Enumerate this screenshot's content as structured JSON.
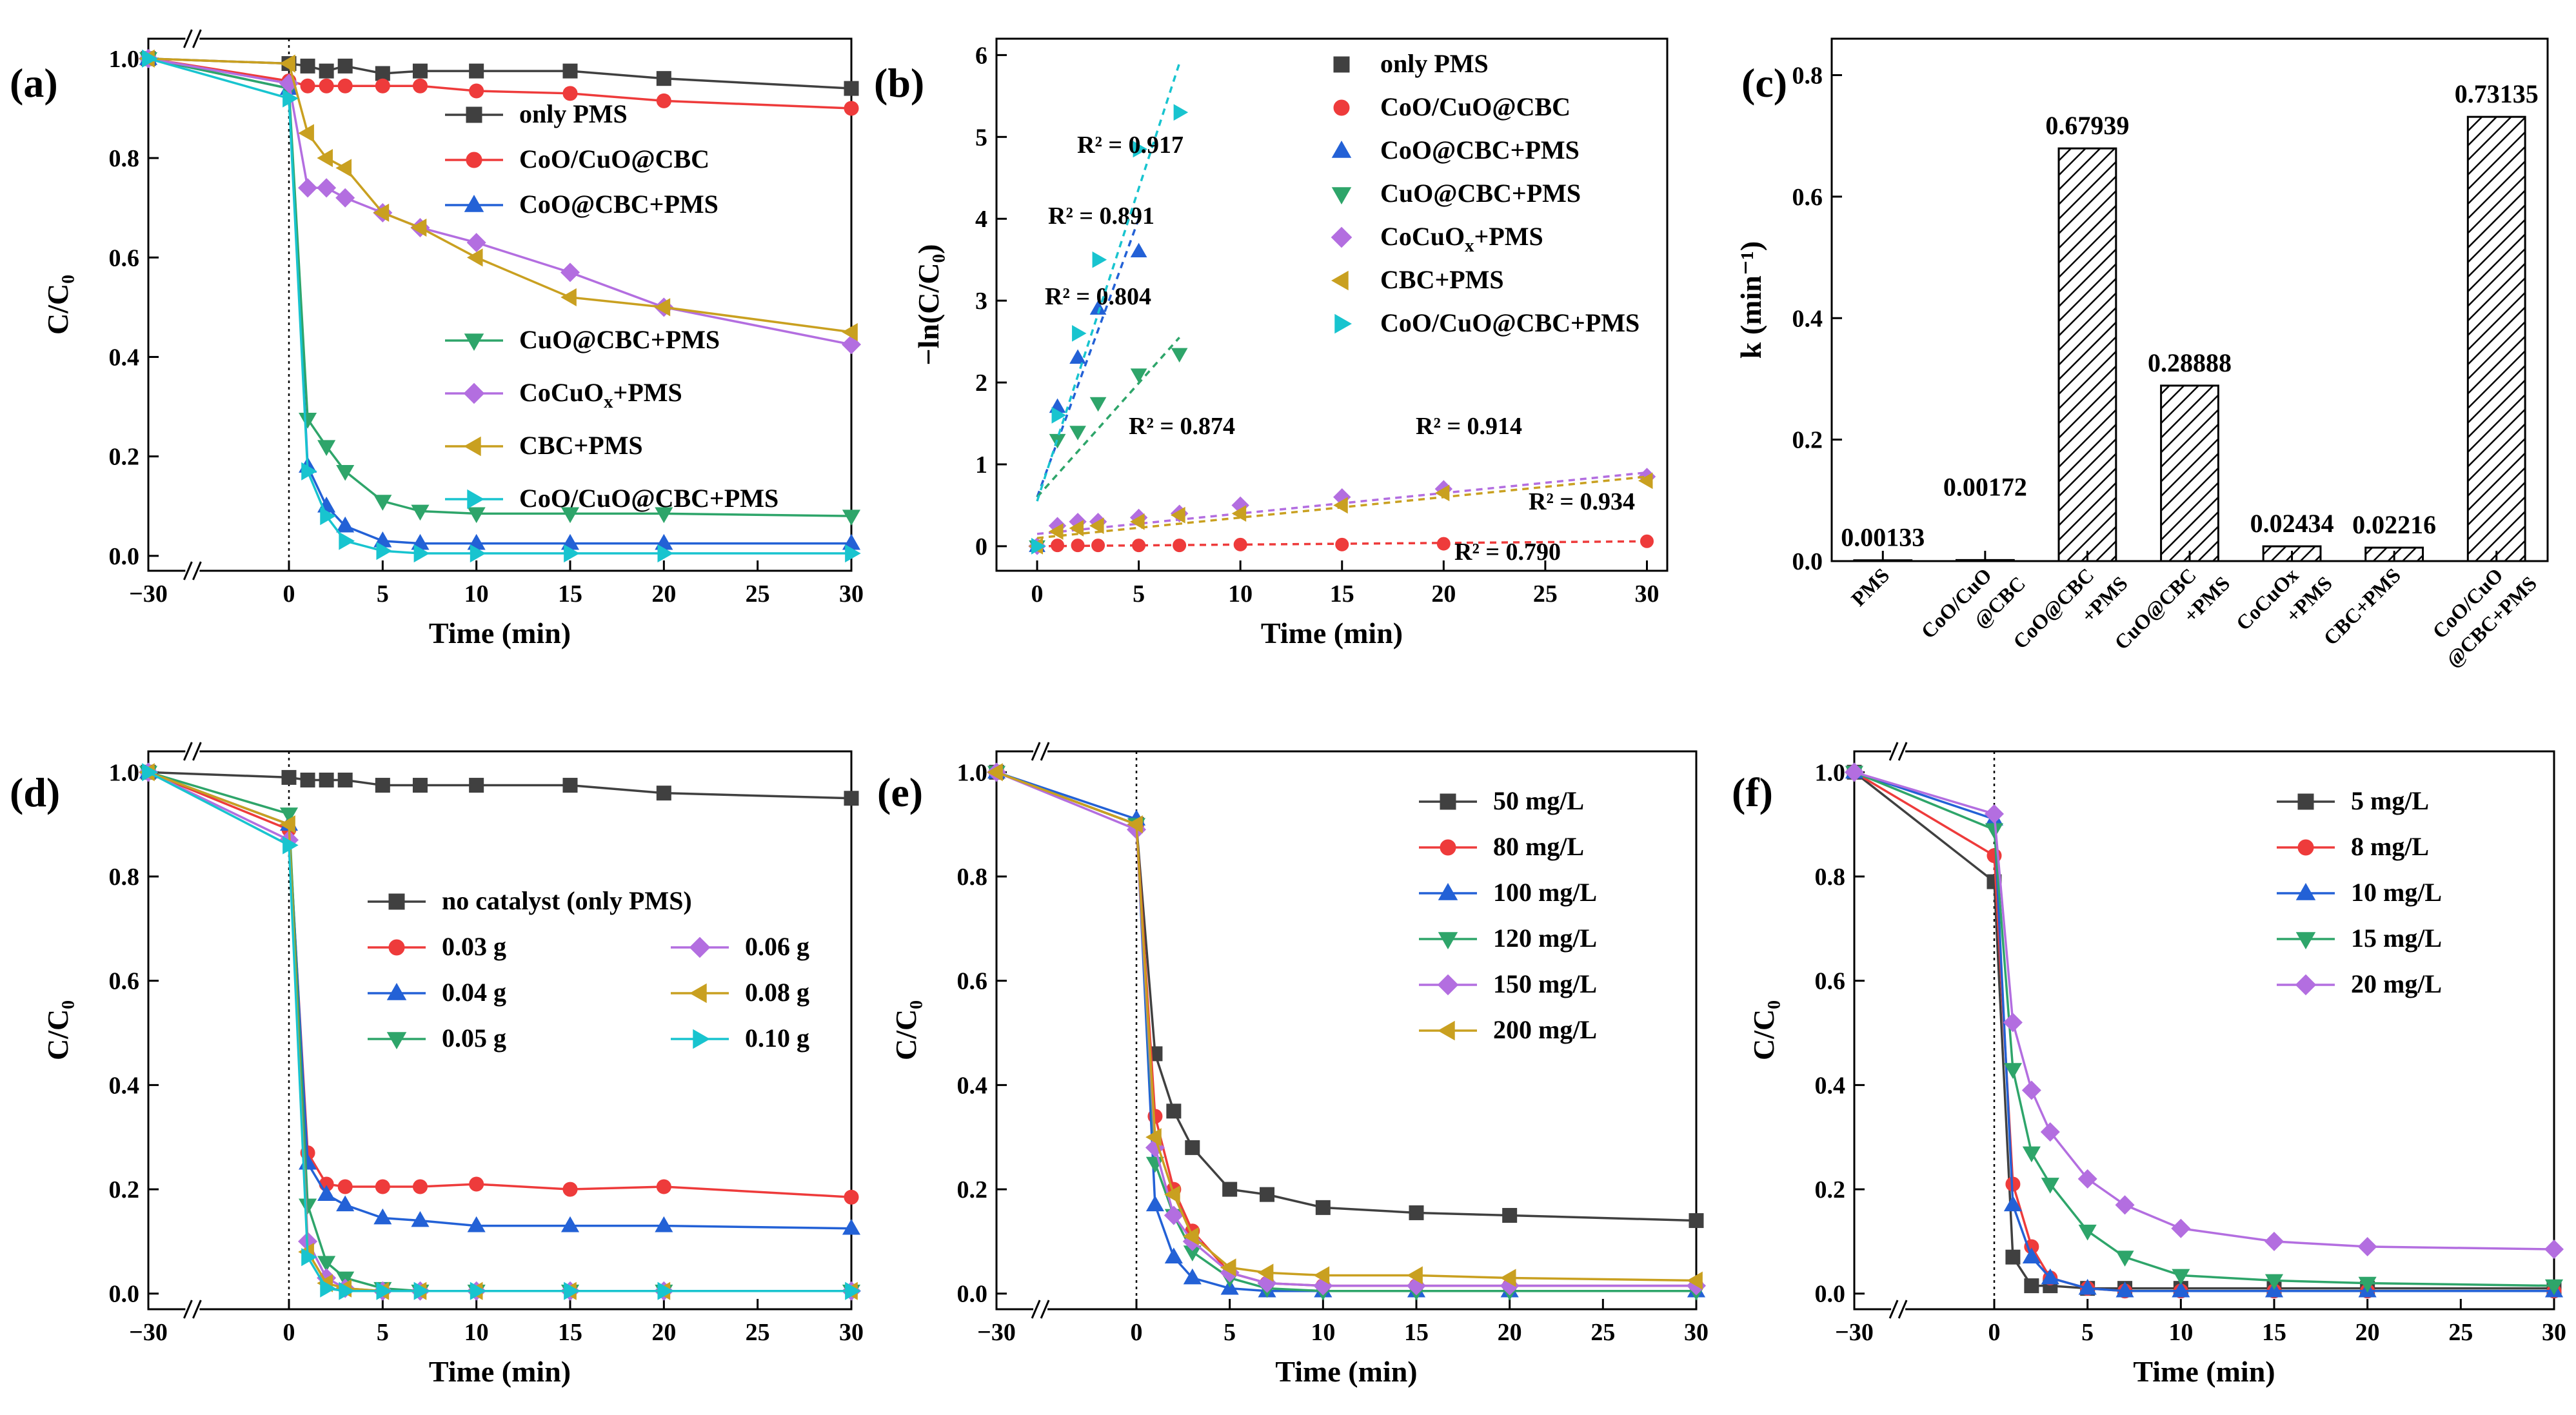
{
  "chart_data": [
    {
      "id": "a",
      "panel_label": "(a)",
      "type": "line",
      "xlabel": "Time (min)",
      "ylabel": "C/C₀",
      "x_ticks": [
        -30,
        0,
        5,
        10,
        15,
        20,
        25,
        30
      ],
      "y_ticks": [
        0.0,
        0.2,
        0.4,
        0.6,
        0.8,
        1.0
      ],
      "ylim": [
        -0.03,
        1.04
      ],
      "x": [
        -30,
        0,
        1,
        2,
        3,
        5,
        7,
        10,
        15,
        20,
        30
      ],
      "series": [
        {
          "name": "only PMS",
          "color": "#404040",
          "marker": "square",
          "values": [
            1.0,
            0.99,
            0.985,
            0.975,
            0.985,
            0.97,
            0.975,
            0.975,
            0.975,
            0.96,
            0.94
          ]
        },
        {
          "name": "CoO/CuO@CBC",
          "color": "#ee3b3b",
          "marker": "circle",
          "values": [
            1.0,
            0.955,
            0.945,
            0.945,
            0.945,
            0.945,
            0.945,
            0.935,
            0.93,
            0.915,
            0.9
          ]
        },
        {
          "name": "CoO@CBC+PMS",
          "color": "#2361d6",
          "marker": "triangle-up",
          "values": [
            1.0,
            0.94,
            0.18,
            0.1,
            0.06,
            0.03,
            0.025,
            0.025,
            0.025,
            0.025,
            0.025
          ]
        },
        {
          "name": "CuO@CBC+PMS",
          "color": "#2ea56a",
          "marker": "triangle-down",
          "values": [
            1.0,
            0.94,
            0.275,
            0.22,
            0.17,
            0.11,
            0.09,
            0.085,
            0.085,
            0.085,
            0.08
          ]
        },
        {
          "name": "CoCuOx+PMS",
          "legend": [
            "CoCuO",
            "x",
            "+PMS"
          ],
          "color": "#b36ee0",
          "marker": "diamond",
          "values": [
            1.0,
            0.95,
            0.74,
            0.74,
            0.72,
            0.69,
            0.66,
            0.63,
            0.57,
            0.5,
            0.425
          ]
        },
        {
          "name": "CBC+PMS",
          "color": "#c9a020",
          "marker": "triangle-left",
          "values": [
            1.0,
            0.99,
            0.85,
            0.8,
            0.78,
            0.69,
            0.66,
            0.6,
            0.52,
            0.5,
            0.45
          ]
        },
        {
          "name": "CoO/CuO@CBC+PMS",
          "color": "#18c4cf",
          "marker": "triangle-right",
          "values": [
            1.0,
            0.92,
            0.17,
            0.08,
            0.03,
            0.01,
            0.005,
            0.005,
            0.005,
            0.005,
            0.005
          ]
        }
      ]
    },
    {
      "id": "b",
      "panel_label": "(b)",
      "type": "scatter",
      "xlabel": "Time (min)",
      "ylabel": "−ln(C/C₀)",
      "x_ticks": [
        0,
        5,
        10,
        15,
        20,
        25,
        30
      ],
      "xlim": [
        -2,
        31
      ],
      "y_ticks": [
        0,
        1,
        2,
        3,
        4,
        5,
        6
      ],
      "ylim": [
        -0.3,
        6.2
      ],
      "series": [
        {
          "name": "only PMS",
          "color": "#404040",
          "marker": "square",
          "points": []
        },
        {
          "name": "CoO/CuO@CBC",
          "color": "#ee3b3b",
          "marker": "circle",
          "points": [
            [
              0,
              0
            ],
            [
              1,
              0.01
            ],
            [
              2,
              0.01
            ],
            [
              3,
              0.01
            ],
            [
              5,
              0.01
            ],
            [
              7,
              0.01
            ],
            [
              10,
              0.02
            ],
            [
              15,
              0.02
            ],
            [
              20,
              0.03
            ],
            [
              30,
              0.06
            ]
          ],
          "fit": [
            [
              0,
              0.0
            ],
            [
              30,
              0.06
            ]
          ],
          "r2": "R² = 0.790"
        },
        {
          "name": "CoO@CBC+PMS",
          "color": "#2361d6",
          "marker": "triangle-up",
          "points": [
            [
              0,
              0
            ],
            [
              1,
              1.7
            ],
            [
              2,
              2.3
            ],
            [
              3,
              2.9
            ],
            [
              5,
              3.6
            ]
          ],
          "fit": [
            [
              0,
              0.6
            ],
            [
              5,
              4.0
            ]
          ],
          "r2": "R² = 0.891"
        },
        {
          "name": "CuO@CBC+PMS",
          "color": "#2ea56a",
          "marker": "triangle-down",
          "points": [
            [
              0,
              0
            ],
            [
              1,
              1.3
            ],
            [
              2,
              1.4
            ],
            [
              3,
              1.75
            ],
            [
              5,
              2.1
            ],
            [
              7,
              2.35
            ]
          ],
          "fit": [
            [
              0,
              0.6
            ],
            [
              7,
              2.55
            ]
          ],
          "r2": "R² = 0.804"
        },
        {
          "name": "CoCuOx+PMS",
          "legend": [
            "CoCuO",
            "x",
            "+PMS"
          ],
          "color": "#b36ee0",
          "marker": "diamond",
          "points": [
            [
              0,
              0
            ],
            [
              1,
              0.25
            ],
            [
              2,
              0.3
            ],
            [
              3,
              0.3
            ],
            [
              5,
              0.35
            ],
            [
              7,
              0.4
            ],
            [
              10,
              0.5
            ],
            [
              15,
              0.6
            ],
            [
              20,
              0.7
            ],
            [
              30,
              0.85
            ]
          ],
          "fit": [
            [
              0,
              0.15
            ],
            [
              30,
              0.9
            ]
          ],
          "r2": "R² = 0.874"
        },
        {
          "name": "CBC+PMS",
          "color": "#c9a020",
          "marker": "triangle-left",
          "points": [
            [
              0,
              0
            ],
            [
              1,
              0.18
            ],
            [
              2,
              0.22
            ],
            [
              3,
              0.25
            ],
            [
              5,
              0.3
            ],
            [
              7,
              0.38
            ],
            [
              10,
              0.4
            ],
            [
              15,
              0.5
            ],
            [
              20,
              0.65
            ],
            [
              30,
              0.8
            ]
          ],
          "fit": [
            [
              0,
              0.1
            ],
            [
              30,
              0.85
            ]
          ],
          "r2": "R² = 0.914"
        },
        {
          "name": "CoO/CuO@CBC+PMS",
          "color": "#18c4cf",
          "marker": "triangle-right",
          "points": [
            [
              0,
              0
            ],
            [
              1,
              1.6
            ],
            [
              2,
              2.6
            ],
            [
              3,
              3.5
            ],
            [
              5,
              4.85
            ],
            [
              7,
              5.3
            ]
          ],
          "fit": [
            [
              0,
              0.55
            ],
            [
              7,
              5.9
            ]
          ],
          "r2": "R² = 0.917"
        }
      ],
      "r2_extra": "R² = 0.934"
    },
    {
      "id": "c",
      "panel_label": "(c)",
      "type": "bar",
      "ylabel": "k (min⁻¹)",
      "y_ticks": [
        0.0,
        0.2,
        0.4,
        0.6,
        0.8
      ],
      "ylim": [
        0,
        0.86
      ],
      "categories": [
        {
          "lines": [
            "PMS"
          ]
        },
        {
          "lines": [
            "CoO/CuO",
            "@CBC"
          ]
        },
        {
          "lines": [
            "CoO@CBC",
            "+PMS"
          ]
        },
        {
          "lines": [
            "CuO@CBC",
            "+PMS"
          ]
        },
        {
          "lines": [
            "CoCuOx",
            "+PMS"
          ]
        },
        {
          "lines": [
            "CBC+PMS"
          ]
        },
        {
          "lines": [
            "CoO/CuO",
            "@CBC+PMS"
          ]
        }
      ],
      "values": [
        0.00133,
        0.00172,
        0.67939,
        0.28888,
        0.02434,
        0.02216,
        0.73135
      ],
      "value_labels": [
        "0.00133",
        "0.00172",
        "0.67939",
        "0.28888",
        "0.02434",
        "0.02216",
        "0.73135"
      ]
    },
    {
      "id": "d",
      "panel_label": "(d)",
      "type": "line",
      "xlabel": "Time (min)",
      "ylabel": "C/C₀",
      "x_ticks": [
        -30,
        0,
        5,
        10,
        15,
        20,
        25,
        30
      ],
      "y_ticks": [
        0.0,
        0.2,
        0.4,
        0.6,
        0.8,
        1.0
      ],
      "ylim": [
        -0.03,
        1.04
      ],
      "x": [
        -30,
        0,
        1,
        2,
        3,
        5,
        7,
        10,
        15,
        20,
        30
      ],
      "series": [
        {
          "name": "no catalyst (only PMS)",
          "color": "#404040",
          "marker": "square",
          "values": [
            1.0,
            0.99,
            0.985,
            0.985,
            0.985,
            0.975,
            0.975,
            0.975,
            0.975,
            0.96,
            0.95
          ]
        },
        {
          "name": "0.03 g",
          "color": "#ee3b3b",
          "marker": "circle",
          "values": [
            1.0,
            0.89,
            0.27,
            0.21,
            0.205,
            0.205,
            0.205,
            0.21,
            0.2,
            0.205,
            0.185
          ]
        },
        {
          "name": "0.04 g",
          "color": "#2361d6",
          "marker": "triangle-up",
          "values": [
            1.0,
            0.9,
            0.25,
            0.19,
            0.17,
            0.145,
            0.14,
            0.13,
            0.13,
            0.13,
            0.125
          ]
        },
        {
          "name": "0.05 g",
          "color": "#2ea56a",
          "marker": "triangle-down",
          "values": [
            1.0,
            0.92,
            0.17,
            0.06,
            0.03,
            0.01,
            0.005,
            0.005,
            0.005,
            0.005,
            0.005
          ]
        },
        {
          "name": "0.06 g",
          "color": "#b36ee0",
          "marker": "diamond",
          "values": [
            1.0,
            0.87,
            0.1,
            0.03,
            0.01,
            0.005,
            0.005,
            0.005,
            0.005,
            0.005,
            0.005
          ]
        },
        {
          "name": "0.08 g",
          "color": "#c9a020",
          "marker": "triangle-left",
          "values": [
            1.0,
            0.9,
            0.08,
            0.02,
            0.01,
            0.005,
            0.005,
            0.005,
            0.005,
            0.005,
            0.005
          ]
        },
        {
          "name": "0.10 g",
          "color": "#18c4cf",
          "marker": "triangle-right",
          "values": [
            1.0,
            0.86,
            0.07,
            0.01,
            0.005,
            0.005,
            0.005,
            0.005,
            0.005,
            0.005,
            0.005
          ]
        }
      ]
    },
    {
      "id": "e",
      "panel_label": "(e)",
      "type": "line",
      "xlabel": "Time (min)",
      "ylabel": "C/C₀",
      "x_ticks": [
        -30,
        0,
        5,
        10,
        15,
        20,
        25,
        30
      ],
      "y_ticks": [
        0.0,
        0.2,
        0.4,
        0.6,
        0.8,
        1.0
      ],
      "ylim": [
        -0.03,
        1.04
      ],
      "x": [
        -30,
        0,
        1,
        2,
        3,
        5,
        7,
        10,
        15,
        20,
        30
      ],
      "series": [
        {
          "name": "50 mg/L",
          "color": "#404040",
          "marker": "square",
          "values": [
            1.0,
            0.9,
            0.46,
            0.35,
            0.28,
            0.2,
            0.19,
            0.165,
            0.155,
            0.15,
            0.14
          ]
        },
        {
          "name": " 80 mg/L",
          "color": "#ee3b3b",
          "marker": "circle",
          "values": [
            1.0,
            0.9,
            0.34,
            0.2,
            0.12,
            0.04,
            0.02,
            0.015,
            0.015,
            0.015,
            0.015
          ]
        },
        {
          "name": "100 mg/L",
          "color": "#2361d6",
          "marker": "triangle-up",
          "values": [
            1.0,
            0.91,
            0.17,
            0.07,
            0.03,
            0.01,
            0.005,
            0.005,
            0.005,
            0.005,
            0.005
          ]
        },
        {
          "name": "120 mg/L",
          "color": "#2ea56a",
          "marker": "triangle-down",
          "values": [
            1.0,
            0.9,
            0.25,
            0.15,
            0.08,
            0.03,
            0.01,
            0.005,
            0.005,
            0.005,
            0.005
          ]
        },
        {
          "name": "150 mg/L",
          "color": "#b36ee0",
          "marker": "diamond",
          "values": [
            1.0,
            0.89,
            0.28,
            0.15,
            0.1,
            0.04,
            0.02,
            0.015,
            0.015,
            0.015,
            0.015
          ]
        },
        {
          "name": "200 mg/L",
          "color": "#c9a020",
          "marker": "triangle-left",
          "values": [
            1.0,
            0.9,
            0.3,
            0.19,
            0.11,
            0.05,
            0.04,
            0.035,
            0.035,
            0.03,
            0.025
          ]
        }
      ]
    },
    {
      "id": "f",
      "panel_label": "(f)",
      "type": "line",
      "xlabel": "Time (min)",
      "ylabel": "C/C₀",
      "x_ticks": [
        -30,
        0,
        5,
        10,
        15,
        20,
        25,
        30
      ],
      "y_ticks": [
        0.0,
        0.2,
        0.4,
        0.6,
        0.8,
        1.0
      ],
      "ylim": [
        -0.03,
        1.04
      ],
      "x": [
        -30,
        0,
        1,
        2,
        3,
        5,
        7,
        10,
        15,
        20,
        30
      ],
      "series": [
        {
          "name": "5 mg/L",
          "color": "#404040",
          "marker": "square",
          "values": [
            1.0,
            0.79,
            0.07,
            0.015,
            0.015,
            0.01,
            0.01,
            0.01,
            0.01,
            0.01,
            0.01
          ]
        },
        {
          "name": "8 mg/L",
          "color": "#ee3b3b",
          "marker": "circle",
          "values": [
            1.0,
            0.84,
            0.21,
            0.09,
            0.03,
            0.01,
            0.005,
            0.005,
            0.005,
            0.005,
            0.005
          ]
        },
        {
          "name": "10 mg/L",
          "color": "#2361d6",
          "marker": "triangle-up",
          "values": [
            1.0,
            0.91,
            0.17,
            0.07,
            0.03,
            0.01,
            0.005,
            0.005,
            0.005,
            0.005,
            0.005
          ]
        },
        {
          "name": "15 mg/L",
          "color": "#2ea56a",
          "marker": "triangle-down",
          "values": [
            1.0,
            0.89,
            0.43,
            0.27,
            0.21,
            0.12,
            0.07,
            0.035,
            0.025,
            0.02,
            0.015
          ]
        },
        {
          "name": "20 mg/L",
          "color": "#b36ee0",
          "marker": "diamond",
          "values": [
            1.0,
            0.92,
            0.52,
            0.39,
            0.31,
            0.22,
            0.17,
            0.125,
            0.1,
            0.09,
            0.085
          ]
        }
      ]
    }
  ]
}
